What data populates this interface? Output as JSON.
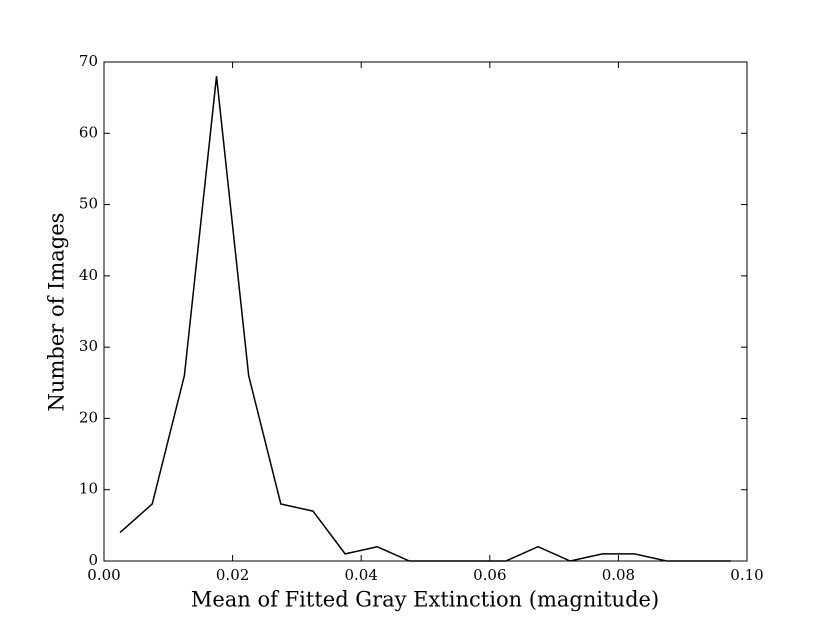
{
  "chart_data": {
    "type": "line",
    "xlabel": "Mean of Fitted Gray Extinction (magnitude)",
    "ylabel": "Number of Images",
    "x": [
      0.0025,
      0.0075,
      0.0125,
      0.0175,
      0.0225,
      0.0275,
      0.0325,
      0.0375,
      0.0425,
      0.0475,
      0.0525,
      0.0575,
      0.0625,
      0.0675,
      0.0725,
      0.0775,
      0.0825,
      0.0875,
      0.0925,
      0.0975
    ],
    "series": [
      {
        "color": "#000000",
        "values": [
          4,
          8,
          26,
          68,
          26,
          8,
          7,
          1,
          2,
          0,
          0,
          0,
          0,
          2,
          0,
          1,
          1,
          0,
          0,
          0
        ]
      }
    ],
    "xlim": [
      0,
      0.1
    ],
    "xticks": [
      {
        "value": 0,
        "label": "0.00"
      },
      0.02,
      0.04,
      0.06,
      0.08,
      {
        "value": 0.1,
        "label": "0.10"
      }
    ],
    "ylim": [
      0,
      70
    ],
    "yticks": [
      0,
      10,
      20,
      30,
      40,
      50,
      60,
      70
    ]
  }
}
